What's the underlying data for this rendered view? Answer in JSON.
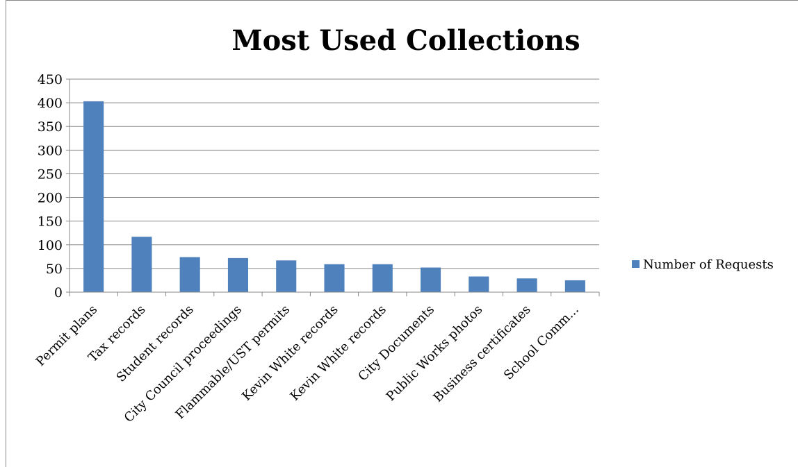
{
  "chart_data": {
    "type": "bar",
    "title": "Most Used Collections",
    "xlabel": "",
    "ylabel": "",
    "categories": [
      "Permit plans",
      "Tax records",
      "Student records",
      "City Council proceedings",
      "Flammable/UST permits",
      "Kevin White records",
      "Kevin White records",
      "City Documents",
      "Public Works photos",
      "Business certificates",
      "School Comm..."
    ],
    "series": [
      {
        "name": "Number of Requests",
        "values": [
          403,
          117,
          74,
          72,
          67,
          59,
          59,
          52,
          33,
          29,
          25
        ]
      }
    ],
    "ylim": [
      0,
      450
    ],
    "yticks": [
      "0",
      "50",
      "100",
      "150",
      "200",
      "250",
      "300",
      "350",
      "400",
      "450"
    ],
    "grid": true,
    "legend_position": "right",
    "bar_color": "#4F81BD"
  }
}
